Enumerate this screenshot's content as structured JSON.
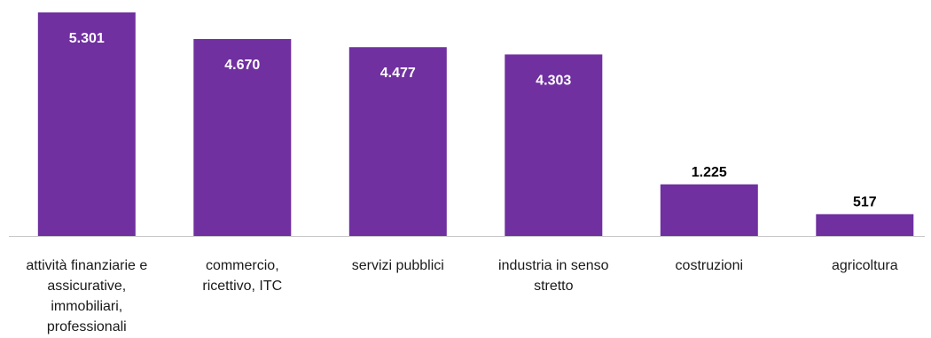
{
  "chart_data": {
    "type": "bar",
    "categories": [
      "attività finanziarie e assicurative, immobiliari, professionali",
      "commercio, ricettivo, ITC",
      "servizi pubblici",
      "industria in senso stretto",
      "costruzioni",
      "agricoltura"
    ],
    "category_lines": [
      [
        "attività finanziarie e",
        "assicurative,",
        "immobiliari,",
        "professionali"
      ],
      [
        "commercio,",
        "ricettivo, ITC"
      ],
      [
        "servizi pubblici"
      ],
      [
        "industria in senso",
        "stretto"
      ],
      [
        "costruzioni"
      ],
      [
        "agricoltura"
      ]
    ],
    "values": [
      5301,
      4670,
      4477,
      4303,
      1225,
      517
    ],
    "value_labels": [
      "5.301",
      "4.670",
      "4.477",
      "4.303",
      "1.225",
      "517"
    ],
    "title": "",
    "xlabel": "",
    "ylabel": "",
    "ylim": [
      0,
      5301
    ],
    "grid": false,
    "legend": "none",
    "bar_color": "#7030a0",
    "label_color_inside": "#ffffff",
    "label_color_outside": "#000000",
    "axis_color": "#c8c8c8"
  }
}
